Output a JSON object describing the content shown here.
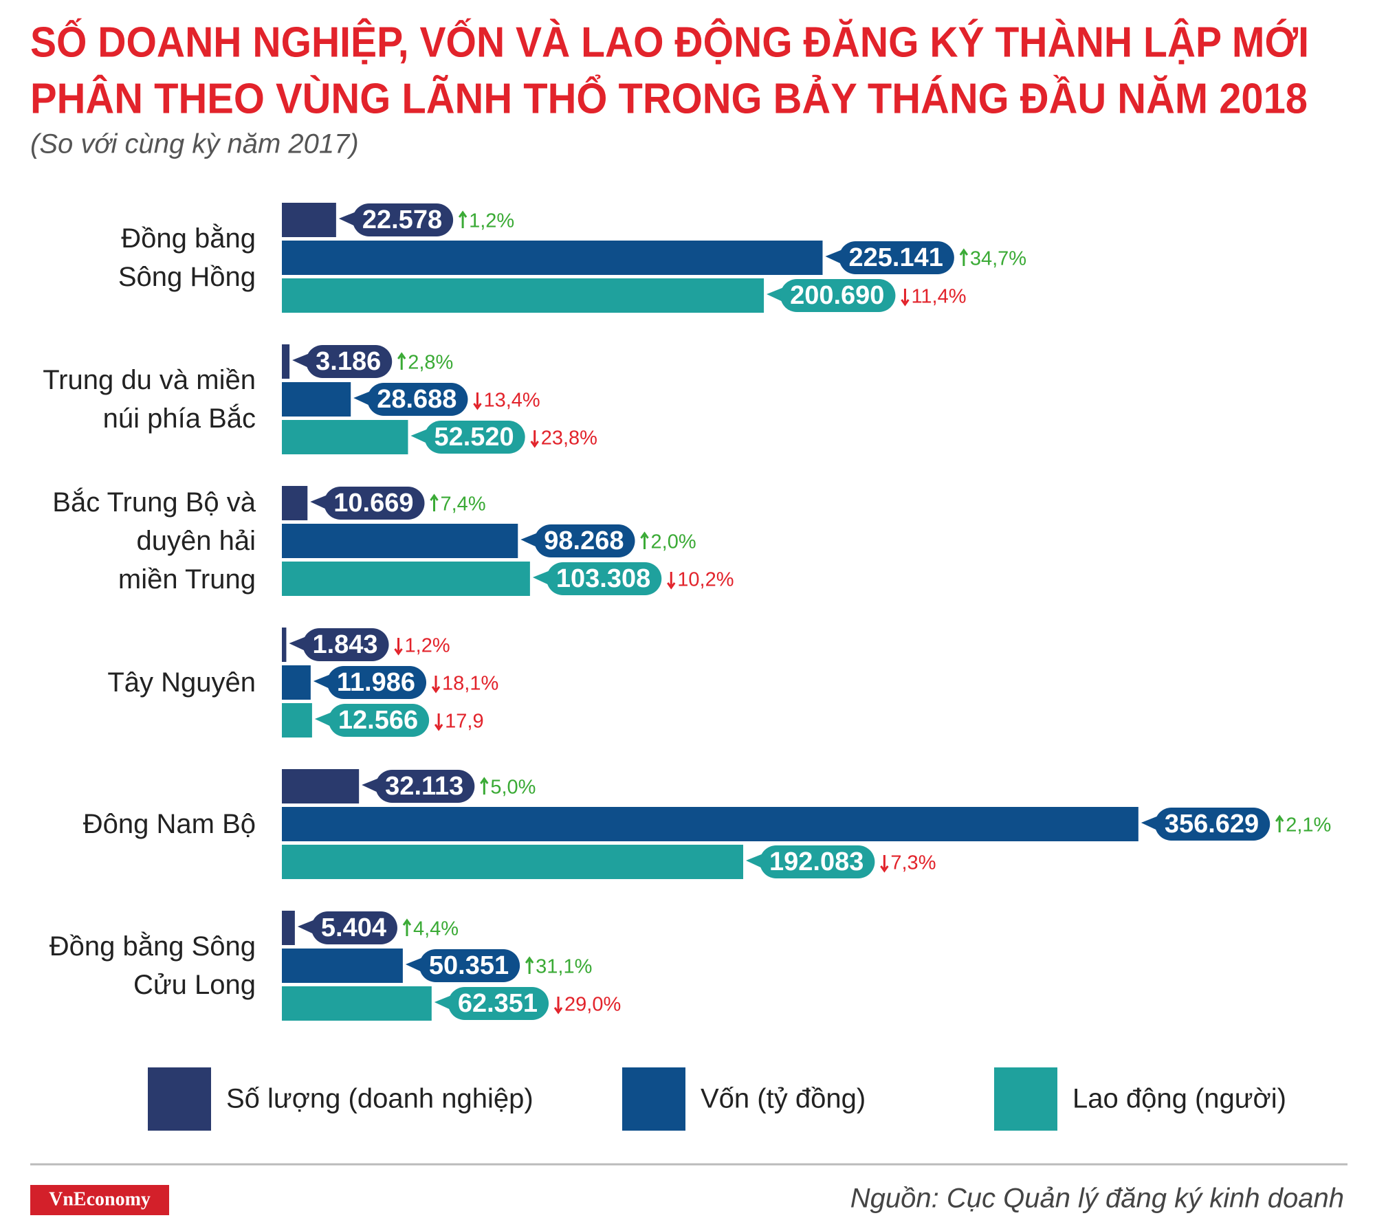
{
  "chart_data": {
    "type": "bar",
    "orientation": "horizontal",
    "title": [
      "SỐ DOANH NGHIỆP, VỐN VÀ LAO ĐỘNG ĐĂNG KÝ THÀNH LẬP MỚI",
      "PHÂN THEO VÙNG LÃNH THỔ TRONG BẢY THÁNG ĐẦU NĂM 2018"
    ],
    "subtitle": "(So với cùng kỳ năm 2017)",
    "categories": [
      "Đồng bằng\nSông Hồng",
      "Trung du và miền\nnúi phía Bắc",
      "Bắc Trung Bộ và\nduyên hải\nmiền Trung",
      "Tây Nguyên",
      "Đông Nam Bộ",
      "Đồng bằng Sông\nCửu Long"
    ],
    "xlim": [
      0,
      450000
    ],
    "up_color": "#3aaa35",
    "down_color": "#e2232b",
    "series": [
      {
        "name": "Số lượng (doanh nghiệp)",
        "color": "#2a3a6d",
        "values": [
          22578,
          3186,
          10669,
          1843,
          32113,
          5404
        ],
        "value_labels": [
          "22.578",
          "3.186",
          "10.669",
          "1.843",
          "32.113",
          "5.404"
        ],
        "changes": [
          1.2,
          2.8,
          7.4,
          -1.2,
          5.0,
          4.4
        ],
        "change_labels": [
          "1,2%",
          "2,8%",
          "7,4%",
          "1,2%",
          "5,0%",
          "4,4%"
        ]
      },
      {
        "name": "Vốn (tỷ đồng)",
        "color": "#0e4e8a",
        "values": [
          225141,
          28688,
          98268,
          11986,
          356629,
          50351
        ],
        "value_labels": [
          "225.141",
          "28.688",
          "98.268",
          "11.986",
          "356.629",
          "50.351"
        ],
        "changes": [
          34.7,
          -13.4,
          2.0,
          -18.1,
          2.1,
          31.1
        ],
        "change_labels": [
          "34,7%",
          "13,4%",
          "2,0%",
          "18,1%",
          "2,1%",
          "31,1%"
        ]
      },
      {
        "name": "Lao động (người)",
        "color": "#1fa19d",
        "values": [
          200690,
          52520,
          103308,
          12566,
          192083,
          62351
        ],
        "value_labels": [
          "200.690",
          "52.520",
          "103.308",
          "12.566",
          "192.083",
          "62.351"
        ],
        "changes": [
          -11.4,
          -23.8,
          -10.2,
          -17.9,
          -7.3,
          -29.0
        ],
        "change_labels": [
          "11,4%",
          "23,8%",
          "10,2%",
          "17,9",
          "7,3%",
          "29,0%"
        ]
      }
    ],
    "source": "Nguồn: Cục Quản lý đăng ký kinh doanh",
    "brand": "VnEconomy"
  }
}
